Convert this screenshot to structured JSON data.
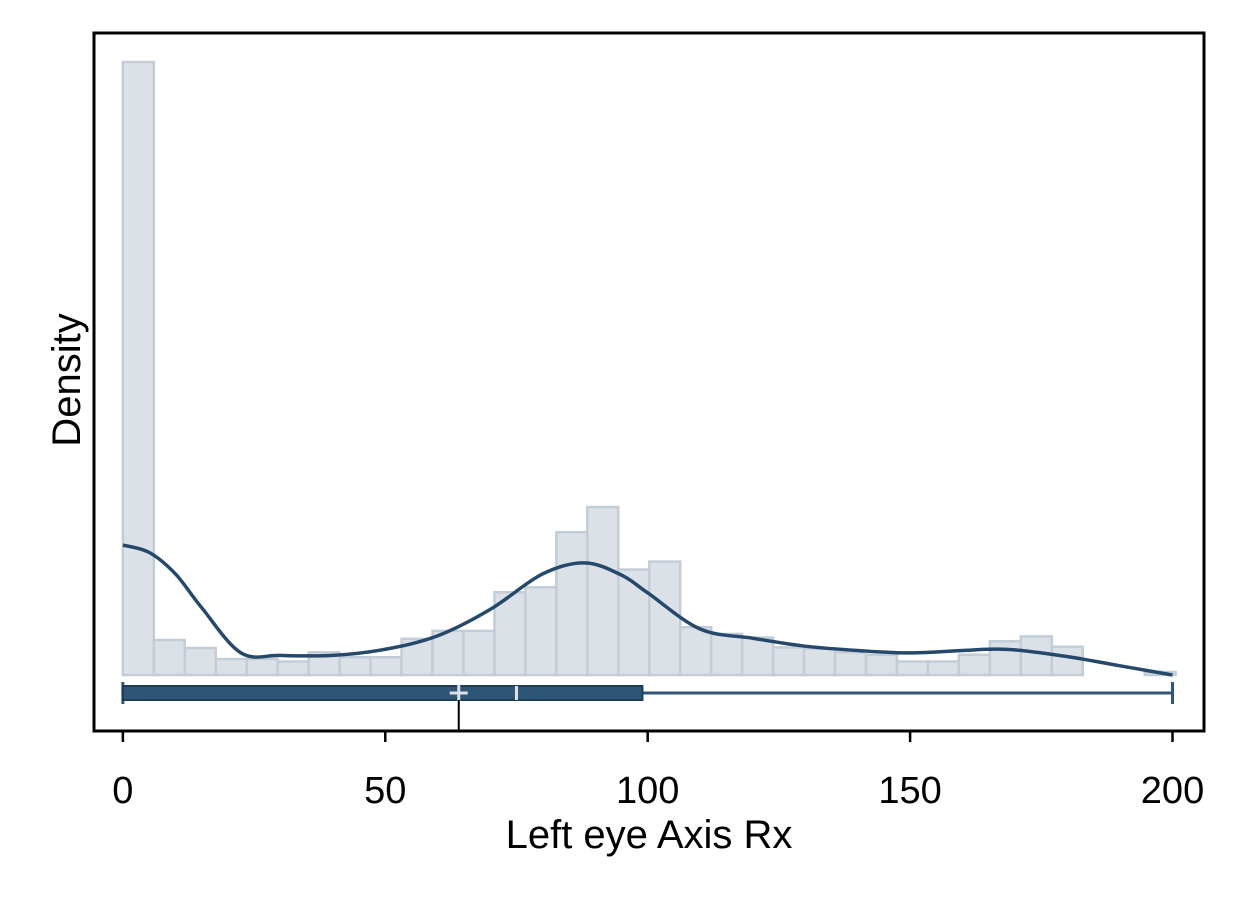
{
  "chart_data": {
    "type": "histogram",
    "title": "",
    "xlabel": "Left eye Axis Rx",
    "ylabel": "Density",
    "xlim": [
      -5.5,
      206
    ],
    "ylim": [
      0,
      1
    ],
    "x_ticks": [
      0,
      50,
      100,
      150,
      200
    ],
    "grid": false,
    "legend": "none",
    "colors": {
      "bar_fill": "#dce1e8",
      "bar_stroke": "#c3cdd8",
      "curve": "#26496b",
      "boxplot": "#2f5677",
      "boxplot_marker": "#dce1e8"
    },
    "histogram": {
      "bin_width": 5.9,
      "bin_start": 0,
      "heights": [
        1.0,
        0.057,
        0.044,
        0.026,
        0.026,
        0.022,
        0.037,
        0.029,
        0.029,
        0.059,
        0.072,
        0.072,
        0.135,
        0.143,
        0.233,
        0.274,
        0.172,
        0.185,
        0.078,
        0.067,
        0.061,
        0.045,
        0.043,
        0.037,
        0.033,
        0.022,
        0.022,
        0.033,
        0.055,
        0.063,
        0.046,
        0,
        0,
        0.005
      ]
    },
    "density_curve": {
      "x": [
        0,
        5,
        10,
        15,
        22.5,
        30,
        40,
        50,
        60,
        70,
        80,
        88,
        95,
        100,
        110,
        120,
        130,
        140,
        150,
        160,
        165,
        170,
        180,
        190,
        200
      ],
      "y": [
        0.212,
        0.2,
        0.165,
        0.11,
        0.036,
        0.032,
        0.032,
        0.042,
        0.064,
        0.107,
        0.165,
        0.183,
        0.163,
        0.134,
        0.075,
        0.06,
        0.047,
        0.04,
        0.036,
        0.04,
        0.042,
        0.041,
        0.03,
        0.015,
        0
      ]
    },
    "boxplot": {
      "min": 0,
      "q1": 0,
      "median": 75,
      "mean": 64,
      "q3": 99,
      "max": 200
    }
  }
}
